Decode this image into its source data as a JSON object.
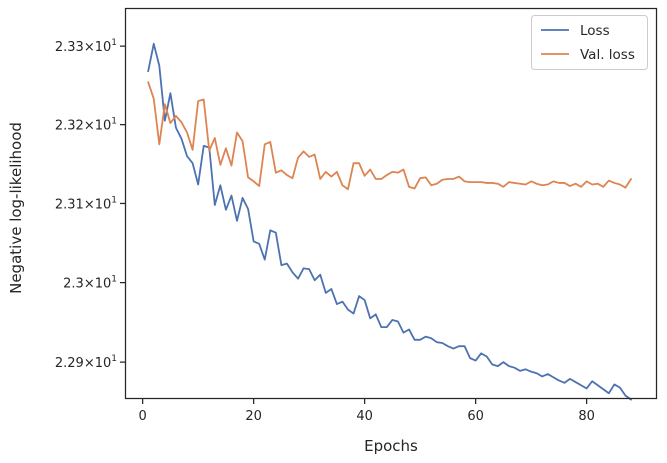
{
  "chart_data": {
    "type": "line",
    "title": "",
    "xlabel": "Epochs",
    "ylabel": "Negative log-likelihood",
    "xlim": [
      -3,
      92.5
    ],
    "ylim": [
      22.855,
      23.3475
    ],
    "yscale": "log",
    "grid": false,
    "legend_position": "top-right",
    "x_ticks": [
      0,
      20,
      40,
      60,
      80
    ],
    "x_tick_labels": [
      "0",
      "20",
      "40",
      "60",
      "80"
    ],
    "y_ticks": [
      22.9,
      23.0,
      23.1,
      23.2,
      23.3
    ],
    "y_tick_labels": [
      {
        "base": "2.29",
        "exp": "1"
      },
      {
        "base": "2.3",
        "exp": "1"
      },
      {
        "base": "2.31",
        "exp": "1"
      },
      {
        "base": "2.32",
        "exp": "1"
      },
      {
        "base": "2.33",
        "exp": "1"
      }
    ],
    "x": [
      1,
      2,
      3,
      4,
      5,
      6,
      7,
      8,
      9,
      10,
      11,
      12,
      13,
      14,
      15,
      16,
      17,
      18,
      19,
      20,
      21,
      22,
      23,
      24,
      25,
      26,
      27,
      28,
      29,
      30,
      31,
      32,
      33,
      34,
      35,
      36,
      37,
      38,
      39,
      40,
      41,
      42,
      43,
      44,
      45,
      46,
      47,
      48,
      49,
      50,
      51,
      52,
      53,
      54,
      55,
      56,
      57,
      58,
      59,
      60,
      61,
      62,
      63,
      64,
      65,
      66,
      67,
      68,
      69,
      70,
      71,
      72,
      73,
      74,
      75,
      76,
      77,
      78,
      79,
      80,
      81,
      82,
      83,
      84,
      85,
      86,
      87,
      88
    ],
    "series": [
      {
        "name": "Loss",
        "color": "#4c72b0",
        "values": [
          23.268,
          23.303,
          23.275,
          23.205,
          23.24,
          23.196,
          23.182,
          23.16,
          23.151,
          23.124,
          23.173,
          23.171,
          23.098,
          23.123,
          23.092,
          23.11,
          23.078,
          23.107,
          23.093,
          23.052,
          23.049,
          23.029,
          23.066,
          23.063,
          23.022,
          23.024,
          23.013,
          23.005,
          23.018,
          23.017,
          23.003,
          23.01,
          22.987,
          22.992,
          22.973,
          22.976,
          22.966,
          22.961,
          22.983,
          22.978,
          22.955,
          22.96,
          22.944,
          22.944,
          22.953,
          22.951,
          22.937,
          22.941,
          22.928,
          22.928,
          22.932,
          22.93,
          22.925,
          22.924,
          22.92,
          22.917,
          22.92,
          22.92,
          22.905,
          22.902,
          22.911,
          22.907,
          22.897,
          22.895,
          22.9,
          22.895,
          22.893,
          22.889,
          22.891,
          22.888,
          22.886,
          22.882,
          22.885,
          22.881,
          22.877,
          22.874,
          22.879,
          22.875,
          22.871,
          22.867,
          22.876,
          22.871,
          22.866,
          22.861,
          22.872,
          22.868,
          22.858,
          22.853
        ]
      },
      {
        "name": "Val. loss",
        "color": "#dd8452",
        "values": [
          23.254,
          23.233,
          23.175,
          23.226,
          23.202,
          23.211,
          23.203,
          23.19,
          23.168,
          23.23,
          23.232,
          23.167,
          23.183,
          23.149,
          23.17,
          23.148,
          23.19,
          23.179,
          23.133,
          23.128,
          23.122,
          23.175,
          23.178,
          23.139,
          23.142,
          23.136,
          23.132,
          23.158,
          23.166,
          23.159,
          23.162,
          23.131,
          23.14,
          23.134,
          23.14,
          23.123,
          23.118,
          23.151,
          23.151,
          23.135,
          23.143,
          23.131,
          23.131,
          23.136,
          23.14,
          23.139,
          23.143,
          23.121,
          23.119,
          23.132,
          23.133,
          23.123,
          23.125,
          23.13,
          23.131,
          23.131,
          23.134,
          23.128,
          23.127,
          23.127,
          23.127,
          23.126,
          23.126,
          23.125,
          23.121,
          23.127,
          23.126,
          23.125,
          23.124,
          23.128,
          23.125,
          23.123,
          23.124,
          23.128,
          23.126,
          23.126,
          23.122,
          23.125,
          23.121,
          23.128,
          23.124,
          23.125,
          23.121,
          23.129,
          23.126,
          23.124,
          23.12,
          23.131
        ]
      }
    ]
  }
}
